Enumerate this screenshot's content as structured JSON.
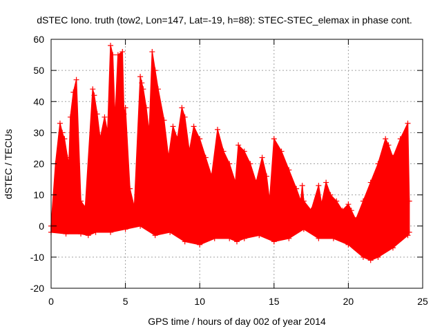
{
  "chart_data": {
    "type": "scatter",
    "title": "dSTEC Iono. truth (tow2, Lon=147, Lat=-19, h=88): STEC-STEC_elemax in phase cont.",
    "xlabel": "GPS time / hours of day 002 of year 2014",
    "ylabel": "dSTEC  / TECUs",
    "xlim": [
      0,
      25
    ],
    "ylim": [
      -20,
      60
    ],
    "x_ticks": [
      0,
      5,
      10,
      15,
      20,
      25
    ],
    "y_ticks": [
      -20,
      -10,
      0,
      10,
      20,
      30,
      40,
      50,
      60
    ],
    "x_tick_labels": [
      "0",
      "5",
      "10",
      "15",
      "20",
      "25"
    ],
    "y_tick_labels": [
      "-20",
      "-10",
      "0",
      "10",
      "20",
      "30",
      "40",
      "50",
      "60"
    ],
    "grid": true,
    "marker": "+",
    "color": "#ff0000",
    "series": [
      {
        "name": "dSTEC",
        "upper_envelope": {
          "x": [
            0,
            0.3,
            0.6,
            0.75,
            0.9,
            1.1,
            1.2,
            1.3,
            1.5,
            1.7,
            2.0,
            2.3,
            2.8,
            2.9,
            3.1,
            3.3,
            3.6,
            3.8,
            4.0,
            4.15,
            4.3,
            4.5,
            4.8,
            4.9,
            5.0,
            5.3,
            5.6,
            6.0,
            6.1,
            6.2,
            6.4,
            6.6,
            6.8,
            7.0,
            7.2,
            7.6,
            7.9,
            8.2,
            8.5,
            8.8,
            9.0,
            9.3,
            9.6,
            10.0,
            10.4,
            10.8,
            11.2,
            11.6,
            12.0,
            12.4,
            12.6,
            13.0,
            13.4,
            13.8,
            14.2,
            14.5,
            14.7,
            15.0,
            15.5,
            16.0,
            16.5,
            16.8,
            16.9,
            17.0,
            17.5,
            18.0,
            18.2,
            18.5,
            18.8,
            19.2,
            19.6,
            20.0,
            20.2,
            20.5,
            21.0,
            21.5,
            22.0,
            22.5,
            22.7,
            23.0,
            23.5,
            24.0,
            24.1
          ],
          "y": [
            0,
            20,
            33,
            30,
            28,
            22,
            20,
            35,
            43,
            47,
            8,
            6,
            44,
            42,
            36,
            28,
            35,
            30,
            58,
            55,
            34,
            55,
            56,
            36,
            38,
            12,
            6,
            48,
            46,
            44,
            38,
            30,
            56,
            50,
            44,
            34,
            22,
            32,
            28,
            38,
            35,
            24,
            32,
            28,
            22,
            16,
            31,
            24,
            20,
            14,
            26,
            24,
            20,
            14,
            22,
            16,
            8,
            28,
            24,
            18,
            12,
            8,
            13,
            8,
            5,
            13,
            7,
            14,
            10,
            8,
            5,
            7,
            5,
            2,
            8,
            14,
            20,
            28,
            26,
            22,
            28,
            33,
            8
          ]
        },
        "lower_envelope": {
          "x": [
            0,
            1,
            2,
            2.5,
            3,
            4,
            5,
            6,
            7,
            8,
            9,
            10,
            11,
            12,
            12.5,
            13,
            14,
            15,
            16,
            17,
            18,
            19,
            20,
            21,
            21.5,
            22,
            23,
            24,
            24.1
          ],
          "y": [
            -2,
            -2.5,
            -2.5,
            -3,
            -2,
            -2,
            -1,
            0,
            -3,
            -2,
            -5,
            -6,
            -4,
            -4,
            -5,
            -4,
            -3,
            -5,
            -4,
            -1,
            -4,
            -4,
            -6,
            -10,
            -11,
            -10,
            -7,
            -3,
            -2
          ]
        }
      }
    ]
  }
}
